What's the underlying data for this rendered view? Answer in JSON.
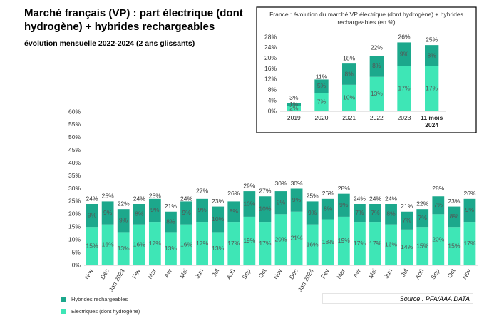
{
  "chart_data": [
    {
      "type": "bar",
      "stacked": true,
      "title": "Marché français (VP) : part électrique (dont hydrogène) + hybrides rechargeables",
      "subtitle": "évolution mensuelle 2022-2024 (2 ans glissants)",
      "categories": [
        "Nov",
        "Déc",
        "Jan 2023",
        "Fév",
        "Mar",
        "Avr",
        "Mai",
        "Jun",
        "Jul",
        "Aoû",
        "Sep",
        "Oct",
        "Nov",
        "Déc",
        "Jan 2024",
        "Fév",
        "Mar",
        "Avr",
        "Mai",
        "Jun",
        "Jul",
        "Aoû",
        "Sep",
        "Oct",
        "Nov"
      ],
      "series": [
        {
          "name": "Electriques (dont hydrogène)",
          "color": "#3ee6b6",
          "values": [
            15,
            16,
            13,
            16,
            17,
            13,
            16,
            17,
            13,
            17,
            19,
            17,
            20,
            21,
            16,
            18,
            19,
            17,
            17,
            16,
            14,
            15,
            20,
            15,
            17
          ],
          "value_labels": [
            "15%",
            "16%",
            "13%",
            "16%",
            "17%",
            "13%",
            "16%",
            "17%",
            "13%",
            "17%",
            "19%",
            "17%",
            "20%",
            "21%",
            "16%",
            "18%",
            "19%",
            "17%",
            "17%",
            "16%",
            "14%",
            "15%",
            "20%",
            "15%",
            "17%"
          ]
        },
        {
          "name": "Hybrides rechargeables",
          "color": "#1ca88c",
          "values": [
            9,
            9,
            9,
            8,
            9,
            8,
            9,
            9,
            10,
            8,
            10,
            10,
            9,
            9,
            9,
            8,
            9,
            7,
            7,
            8,
            7,
            7,
            7,
            8,
            9
          ],
          "value_labels": [
            "9%",
            "9%",
            "9%",
            "8%",
            "9%",
            "8%",
            "9%",
            "9%",
            "10%",
            "8%",
            "10%",
            "10%",
            "9%",
            "9%",
            "9%",
            "8%",
            "9%",
            "7%",
            "7%",
            "8%",
            "7%",
            "7%",
            "7%",
            "8%",
            "9%"
          ]
        }
      ],
      "totals": [
        24,
        25,
        22,
        24,
        25,
        21,
        24,
        27,
        23,
        26,
        29,
        27,
        30,
        30,
        25,
        26,
        28,
        24,
        24,
        24,
        21,
        22,
        28,
        23,
        26
      ],
      "total_labels": [
        "24%",
        "25%",
        "22%",
        "24%",
        "25%",
        "21%",
        "24%",
        "27%",
        "23%",
        "26%",
        "29%",
        "27%",
        "30%",
        "30%",
        "25%",
        "26%",
        "28%",
        "24%",
        "24%",
        "24%",
        "21%",
        "22%",
        "28%",
        "23%",
        "26%"
      ],
      "ylim": [
        0,
        60
      ],
      "yticks": [
        {
          "value": 0,
          "label": "0%"
        },
        {
          "value": 5,
          "label": "5%"
        },
        {
          "value": 10,
          "label": "10%"
        },
        {
          "value": 15,
          "label": "15%"
        },
        {
          "value": 20,
          "label": "20%"
        },
        {
          "value": 25,
          "label": "25%"
        },
        {
          "value": 30,
          "label": "30%"
        },
        {
          "value": 35,
          "label": "35%"
        },
        {
          "value": 40,
          "label": "40%"
        },
        {
          "value": 45,
          "label": "45%"
        },
        {
          "value": 50,
          "label": "50%"
        },
        {
          "value": 55,
          "label": "55%"
        },
        {
          "value": 60,
          "label": "60%"
        }
      ],
      "legend": "bottom-left",
      "source": "Source : PFA/AAA DATA"
    },
    {
      "type": "bar",
      "stacked": true,
      "title": "France : évolution du marché VP électrique (dont hydrogène) + hybrides rechargeables (en %)",
      "categories": [
        "2019",
        "2020",
        "2021",
        "2022",
        "2023",
        "11 mois 2024"
      ],
      "series": [
        {
          "color": "#3ee6b6",
          "values": [
            2,
            7,
            10,
            13,
            17,
            17
          ],
          "value_labels": [
            "2%",
            "7%",
            "10%",
            "13%",
            "17%",
            "17%"
          ]
        },
        {
          "color": "#1ca88c",
          "values": [
            1,
            5,
            8,
            8,
            9,
            8
          ],
          "value_labels": [
            "1%",
            "5%",
            "8%",
            "8%",
            "9%",
            "8%"
          ]
        }
      ],
      "totals": [
        3,
        11,
        18,
        22,
        26,
        25
      ],
      "total_labels": [
        "3%",
        "11%",
        "18%",
        "22%",
        "26%",
        "25%"
      ],
      "ylim": [
        0,
        28
      ],
      "yticks": [
        {
          "value": 0,
          "label": "0%"
        },
        {
          "value": 4,
          "label": "4%"
        },
        {
          "value": 8,
          "label": "8%"
        },
        {
          "value": 12,
          "label": "12%"
        },
        {
          "value": 16,
          "label": "16%"
        },
        {
          "value": 20,
          "label": "20%"
        },
        {
          "value": 24,
          "label": "24%"
        },
        {
          "value": 28,
          "label": "28%"
        }
      ]
    }
  ]
}
